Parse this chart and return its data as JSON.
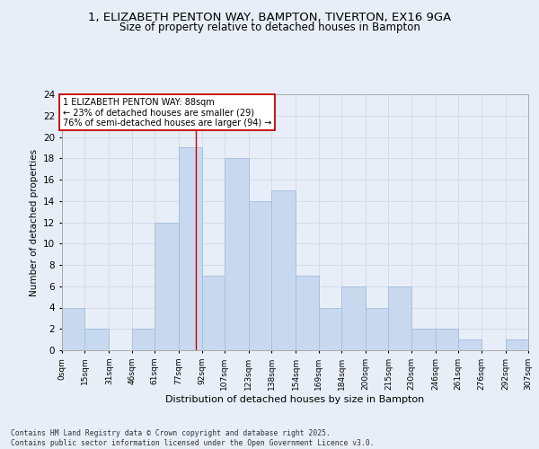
{
  "title_line1": "1, ELIZABETH PENTON WAY, BAMPTON, TIVERTON, EX16 9GA",
  "title_line2": "Size of property relative to detached houses in Bampton",
  "xlabel": "Distribution of detached houses by size in Bampton",
  "ylabel": "Number of detached properties",
  "bin_edges": [
    0,
    15,
    31,
    46,
    61,
    77,
    92,
    107,
    123,
    138,
    154,
    169,
    184,
    200,
    215,
    230,
    246,
    261,
    276,
    292,
    307
  ],
  "bar_heights": [
    4,
    2,
    0,
    2,
    12,
    19,
    7,
    18,
    14,
    15,
    7,
    4,
    6,
    4,
    6,
    2,
    2,
    1,
    0,
    1
  ],
  "bar_color": "#c8d9ef",
  "bar_edge_color": "#a8c0de",
  "grid_color": "#d4dce8",
  "vline_x": 88,
  "vline_color": "#cc0000",
  "annotation_text": "1 ELIZABETH PENTON WAY: 88sqm\n← 23% of detached houses are smaller (29)\n76% of semi-detached houses are larger (94) →",
  "annotation_box_color": "#ffffff",
  "annotation_box_edge": "#cc0000",
  "ylim": [
    0,
    24
  ],
  "yticks": [
    0,
    2,
    4,
    6,
    8,
    10,
    12,
    14,
    16,
    18,
    20,
    22,
    24
  ],
  "tick_labels": [
    "0sqm",
    "15sqm",
    "31sqm",
    "46sqm",
    "61sqm",
    "77sqm",
    "92sqm",
    "107sqm",
    "123sqm",
    "138sqm",
    "154sqm",
    "169sqm",
    "184sqm",
    "200sqm",
    "215sqm",
    "230sqm",
    "246sqm",
    "261sqm",
    "276sqm",
    "292sqm",
    "307sqm"
  ],
  "footer_text": "Contains HM Land Registry data © Crown copyright and database right 2025.\nContains public sector information licensed under the Open Government Licence v3.0.",
  "bg_color": "#e8eef8"
}
